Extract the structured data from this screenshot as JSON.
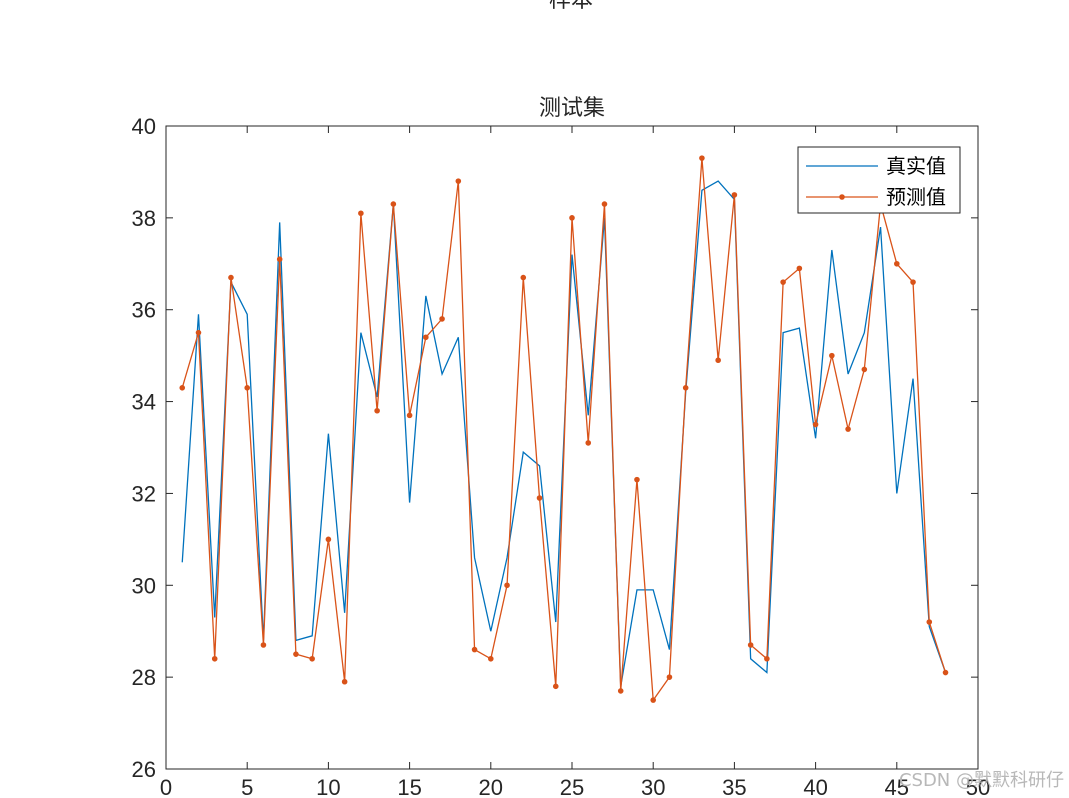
{
  "figure": {
    "suptitle": "样本",
    "watermark": "CSDN @默默科研仔"
  },
  "chart_data": {
    "type": "line",
    "title": "测试集",
    "xlabel": "",
    "ylabel": "",
    "xlim": [
      0,
      50
    ],
    "ylim": [
      26,
      40
    ],
    "xticks": [
      0,
      5,
      10,
      15,
      20,
      25,
      30,
      35,
      40,
      45,
      50
    ],
    "yticks": [
      26,
      28,
      30,
      32,
      34,
      36,
      38,
      40
    ],
    "grid": false,
    "legend": "top-right",
    "x": [
      1,
      2,
      3,
      4,
      5,
      6,
      7,
      8,
      9,
      10,
      11,
      12,
      13,
      14,
      15,
      16,
      17,
      18,
      19,
      20,
      21,
      22,
      23,
      24,
      25,
      26,
      27,
      28,
      29,
      30,
      31,
      32,
      33,
      34,
      35,
      36,
      37,
      38,
      39,
      40,
      41,
      42,
      43,
      44,
      45,
      46,
      47,
      48
    ],
    "series": [
      {
        "name": "真实值",
        "color": "#0072bd",
        "marker": "none",
        "values": [
          30.5,
          35.9,
          29.3,
          36.6,
          35.9,
          28.8,
          37.9,
          28.8,
          28.9,
          33.3,
          29.4,
          35.5,
          34.1,
          38.3,
          31.8,
          36.3,
          34.6,
          35.4,
          30.6,
          29.0,
          30.6,
          32.9,
          32.6,
          29.2,
          37.2,
          33.7,
          38.0,
          27.8,
          29.9,
          29.9,
          28.6,
          34.2,
          38.6,
          38.8,
          38.4,
          28.4,
          28.1,
          35.5,
          35.6,
          33.2,
          37.3,
          34.6,
          35.5,
          37.8,
          32.0,
          34.5,
          29.1,
          28.1
        ]
      },
      {
        "name": "预测值",
        "color": "#d95319",
        "marker": "dot",
        "values": [
          34.3,
          35.5,
          28.4,
          36.7,
          34.3,
          28.7,
          37.1,
          28.5,
          28.4,
          31.0,
          27.9,
          38.1,
          33.8,
          38.3,
          33.7,
          35.4,
          35.8,
          38.8,
          28.6,
          28.4,
          30.0,
          36.7,
          31.9,
          27.8,
          38.0,
          33.1,
          38.3,
          27.7,
          32.3,
          27.5,
          28.0,
          34.3,
          39.3,
          34.9,
          38.5,
          28.7,
          28.4,
          36.6,
          36.9,
          33.5,
          35.0,
          33.4,
          34.7,
          38.3,
          37.0,
          36.6,
          29.2,
          28.1
        ]
      }
    ]
  }
}
